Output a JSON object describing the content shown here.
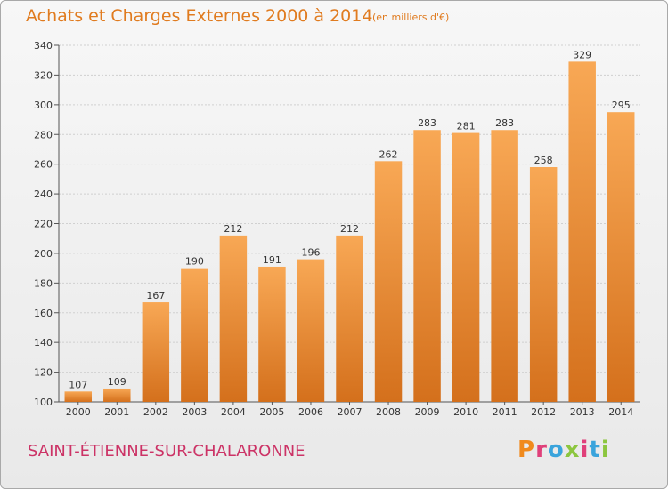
{
  "header": {
    "title": "Achats et Charges Externes 2000 à 2014",
    "unit": "(en milliers d'€)"
  },
  "footer": {
    "city": "SAINT-ÉTIENNE-SUR-CHALARONNE",
    "logo": "Proxiti"
  },
  "colors": {
    "bar_light": "#f8a855",
    "bar_dark": "#d4701c",
    "title": "#e07b1f",
    "city": "#cc3366"
  },
  "chart_data": {
    "type": "bar",
    "title": "Achats et Charges Externes 2000 à 2014",
    "subtitle": "(en milliers d'€)",
    "xlabel": "",
    "ylabel": "",
    "categories": [
      "2000",
      "2001",
      "2002",
      "2003",
      "2004",
      "2005",
      "2006",
      "2007",
      "2008",
      "2009",
      "2010",
      "2011",
      "2012",
      "2013",
      "2014"
    ],
    "values": [
      107,
      109,
      167,
      190,
      212,
      191,
      196,
      212,
      262,
      283,
      281,
      283,
      258,
      329,
      295
    ],
    "ylim": [
      100,
      340
    ],
    "yticks": [
      100,
      120,
      140,
      160,
      180,
      200,
      220,
      240,
      260,
      280,
      300,
      320,
      340
    ],
    "grid": true,
    "data_labels": true
  }
}
